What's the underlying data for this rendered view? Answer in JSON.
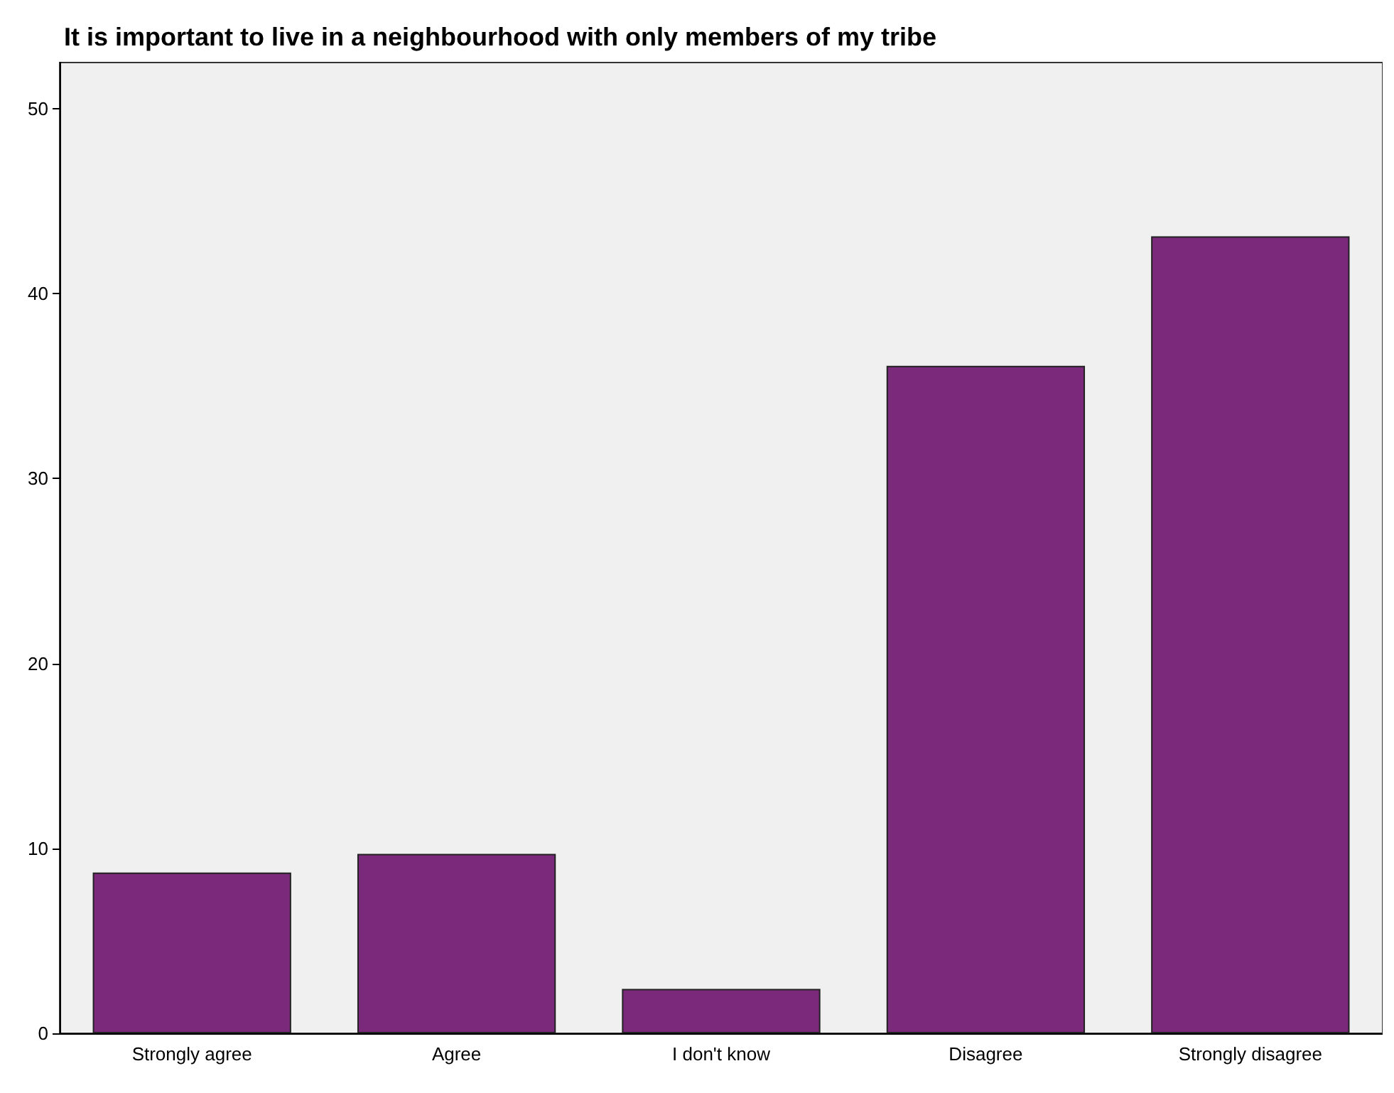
{
  "chart_data": {
    "type": "bar",
    "title": "It is important to live in a neighbourhood with only members of my tribe",
    "categories": [
      "Strongly agree",
      "Agree",
      "I don't know",
      "Disagree",
      "Strongly disagree"
    ],
    "values": [
      8.7,
      9.7,
      2.4,
      36.1,
      43.1
    ],
    "color": "#7b2a7b",
    "ylim": [
      0,
      52.5
    ],
    "yticks": [
      0,
      10,
      20,
      30,
      40,
      50
    ],
    "grid": false
  }
}
